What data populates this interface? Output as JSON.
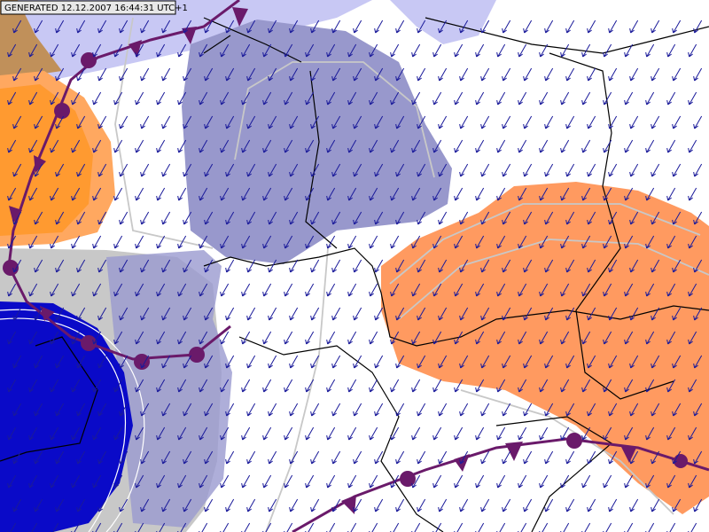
{
  "header": {
    "label": "GENERATED 12.12.2007 16:44:31 UTC+1"
  }
}
